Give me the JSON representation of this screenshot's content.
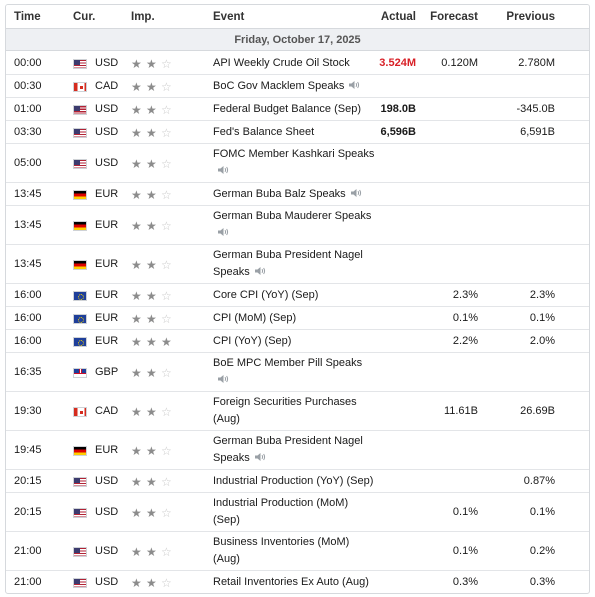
{
  "header": {
    "time": "Time",
    "currency": "Cur.",
    "importance": "Imp.",
    "event": "Event",
    "actual": "Actual",
    "forecast": "Forecast",
    "previous": "Previous"
  },
  "day_label": "Friday, October 17, 2025",
  "colors": {
    "negative": "#d81f26",
    "star_on": "#8c8c8c",
    "star_off": "#c8c8c8"
  },
  "rows": [
    {
      "time": "00:00",
      "flag": "us",
      "currency": "USD",
      "stars": 2,
      "event": "API Weekly Crude Oil Stock",
      "speaker": false,
      "actual": "3.524M",
      "actual_color": "negative",
      "forecast": "0.120M",
      "previous": "2.780M"
    },
    {
      "time": "00:30",
      "flag": "ca",
      "currency": "CAD",
      "stars": 2,
      "event": "BoC Gov Macklem Speaks",
      "speaker": true,
      "actual": "",
      "forecast": "",
      "previous": ""
    },
    {
      "time": "01:00",
      "flag": "us",
      "currency": "USD",
      "stars": 2,
      "event": "Federal Budget Balance (Sep)",
      "speaker": false,
      "actual": "198.0B",
      "forecast": "",
      "previous": "-345.0B"
    },
    {
      "time": "03:30",
      "flag": "us",
      "currency": "USD",
      "stars": 2,
      "event": "Fed's Balance Sheet",
      "speaker": false,
      "actual": "6,596B",
      "forecast": "",
      "previous": "6,591B"
    },
    {
      "time": "05:00",
      "flag": "us",
      "currency": "USD",
      "stars": 2,
      "event": "FOMC Member Kashkari Speaks",
      "speaker": true,
      "actual": "",
      "forecast": "",
      "previous": ""
    },
    {
      "time": "13:45",
      "flag": "de",
      "currency": "EUR",
      "stars": 2,
      "event": "German Buba Balz Speaks",
      "speaker": true,
      "actual": "",
      "forecast": "",
      "previous": ""
    },
    {
      "time": "13:45",
      "flag": "de",
      "currency": "EUR",
      "stars": 2,
      "event": "German Buba Mauderer Speaks",
      "speaker": true,
      "actual": "",
      "forecast": "",
      "previous": ""
    },
    {
      "time": "13:45",
      "flag": "de",
      "currency": "EUR",
      "stars": 2,
      "event": "German Buba President Nagel Speaks",
      "speaker": true,
      "actual": "",
      "forecast": "",
      "previous": ""
    },
    {
      "time": "16:00",
      "flag": "eu",
      "currency": "EUR",
      "stars": 2,
      "event": "Core CPI (YoY) (Sep)",
      "speaker": false,
      "actual": "",
      "forecast": "2.3%",
      "previous": "2.3%"
    },
    {
      "time": "16:00",
      "flag": "eu",
      "currency": "EUR",
      "stars": 2,
      "event": "CPI (MoM) (Sep)",
      "speaker": false,
      "actual": "",
      "forecast": "0.1%",
      "previous": "0.1%"
    },
    {
      "time": "16:00",
      "flag": "eu",
      "currency": "EUR",
      "stars": 3,
      "event": "CPI (YoY) (Sep)",
      "speaker": false,
      "actual": "",
      "forecast": "2.2%",
      "previous": "2.0%"
    },
    {
      "time": "16:35",
      "flag": "gb",
      "currency": "GBP",
      "stars": 2,
      "event": "BoE MPC Member Pill Speaks",
      "speaker": true,
      "actual": "",
      "forecast": "",
      "previous": ""
    },
    {
      "time": "19:30",
      "flag": "ca",
      "currency": "CAD",
      "stars": 2,
      "event": "Foreign Securities Purchases (Aug)",
      "speaker": false,
      "actual": "",
      "forecast": "11.61B",
      "previous": "26.69B"
    },
    {
      "time": "19:45",
      "flag": "de",
      "currency": "EUR",
      "stars": 2,
      "event": "German Buba President Nagel Speaks",
      "speaker": true,
      "actual": "",
      "forecast": "",
      "previous": ""
    },
    {
      "time": "20:15",
      "flag": "us",
      "currency": "USD",
      "stars": 2,
      "event": "Industrial Production (YoY) (Sep)",
      "speaker": false,
      "actual": "",
      "forecast": "",
      "previous": "0.87%"
    },
    {
      "time": "20:15",
      "flag": "us",
      "currency": "USD",
      "stars": 2,
      "event": "Industrial Production (MoM) (Sep)",
      "speaker": false,
      "actual": "",
      "forecast": "0.1%",
      "previous": "0.1%"
    },
    {
      "time": "21:00",
      "flag": "us",
      "currency": "USD",
      "stars": 2,
      "event": "Business Inventories (MoM) (Aug)",
      "speaker": false,
      "actual": "",
      "forecast": "0.1%",
      "previous": "0.2%"
    },
    {
      "time": "21:00",
      "flag": "us",
      "currency": "USD",
      "stars": 2,
      "event": "Retail Inventories Ex Auto (Aug)",
      "speaker": false,
      "actual": "",
      "forecast": "0.3%",
      "previous": "0.3%"
    }
  ]
}
